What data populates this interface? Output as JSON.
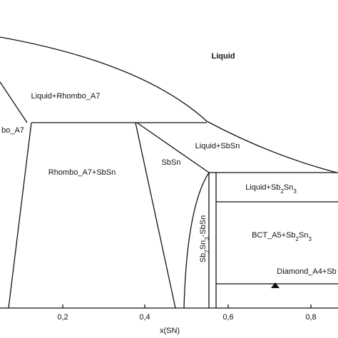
{
  "diagram": {
    "regions": [
      {
        "label": [
          "Liquid"
        ]
      },
      {
        "label": [
          "Liquid+Rhombo_A7"
        ]
      },
      {
        "label": [
          "bo_A7"
        ]
      },
      {
        "label": [
          "Rhombo_A7+SbSn"
        ]
      },
      {
        "label": [
          "SbSn"
        ]
      },
      {
        "label": [
          "Liquid+SbSn"
        ]
      },
      {
        "label": [
          "Liquid+Sb",
          "2",
          "Sn",
          "3"
        ]
      },
      {
        "label": [
          "BCT_A5+Sb",
          "2",
          "Sn",
          "3"
        ]
      },
      {
        "label": [
          "Sb",
          "2",
          "Sn",
          "3",
          "-SbSn"
        ]
      },
      {
        "label": [
          "Diamond_A4+Sb"
        ]
      }
    ],
    "axis": {
      "label": "x(SN)",
      "ticks": [
        "0,2",
        "0,4",
        "0,6",
        "0,8"
      ]
    }
  }
}
